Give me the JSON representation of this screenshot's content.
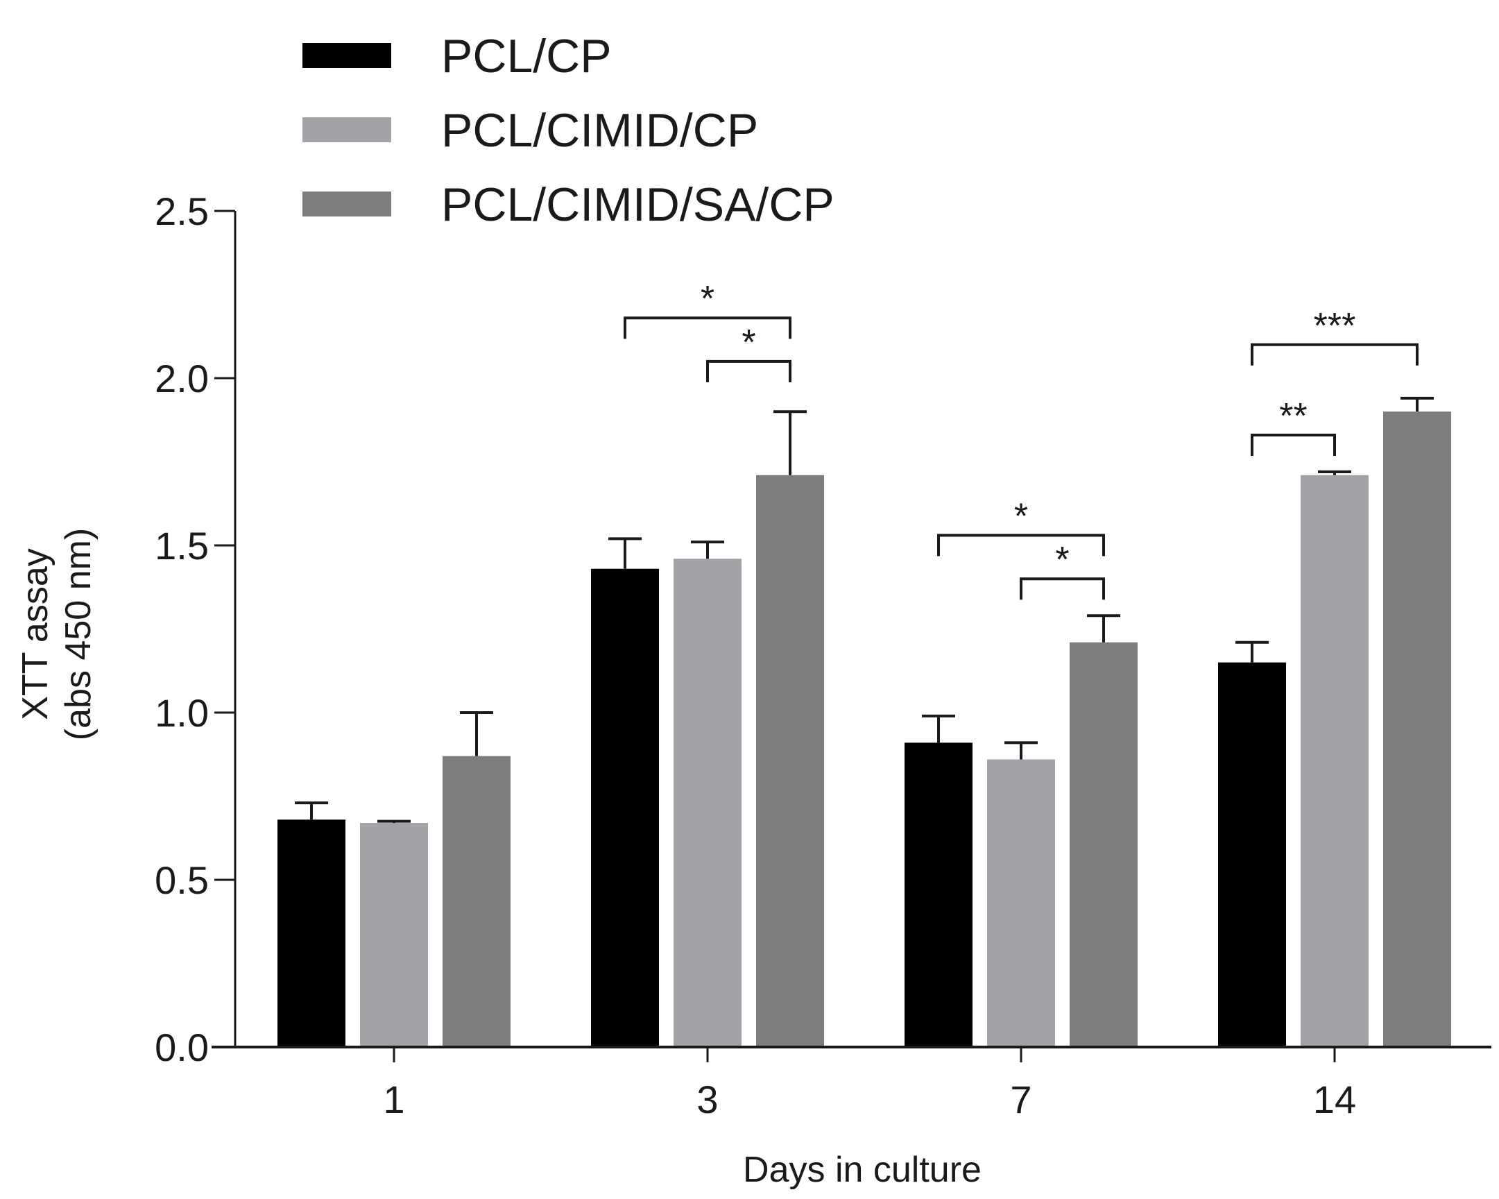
{
  "chart_data": {
    "type": "bar",
    "title": "",
    "xlabel": "Days in culture",
    "ylabel": [
      "XTT assay",
      "(abs 450 nm)"
    ],
    "ylim": [
      0,
      2.5
    ],
    "yticks": [
      "0.0",
      "0.5",
      "1.0",
      "1.5",
      "2.0",
      "2.5"
    ],
    "categories": [
      "1",
      "3",
      "7",
      "14"
    ],
    "series": [
      {
        "name": "PCL/CP",
        "color": "#000000",
        "values": [
          0.68,
          1.43,
          0.91,
          1.15
        ],
        "errors": [
          0.05,
          0.09,
          0.08,
          0.06
        ]
      },
      {
        "name": "PCL/CIMID/CP",
        "color": "#a3a3a7",
        "values": [
          0.67,
          1.46,
          0.86,
          1.71
        ],
        "errors": [
          0.005,
          0.05,
          0.05,
          0.01
        ]
      },
      {
        "name": "PCL/CIMID/SA/CP",
        "color": "#7d7d7d",
        "values": [
          0.87,
          1.71,
          1.21,
          1.9
        ],
        "errors": [
          0.13,
          0.19,
          0.08,
          0.04
        ]
      }
    ],
    "legend_position": "top-left",
    "significance": [
      {
        "category": 1,
        "from": 0,
        "to": 2,
        "label": "*",
        "level": 2.18
      },
      {
        "category": 1,
        "from": 1,
        "to": 2,
        "label": "*",
        "level": 2.05
      },
      {
        "category": 2,
        "from": 0,
        "to": 2,
        "label": "*",
        "level": 1.53
      },
      {
        "category": 2,
        "from": 1,
        "to": 2,
        "label": "*",
        "level": 1.4
      },
      {
        "category": 3,
        "from": 0,
        "to": 2,
        "label": "***",
        "level": 2.1
      },
      {
        "category": 3,
        "from": 0,
        "to": 1,
        "label": "**",
        "level": 1.83
      }
    ]
  }
}
